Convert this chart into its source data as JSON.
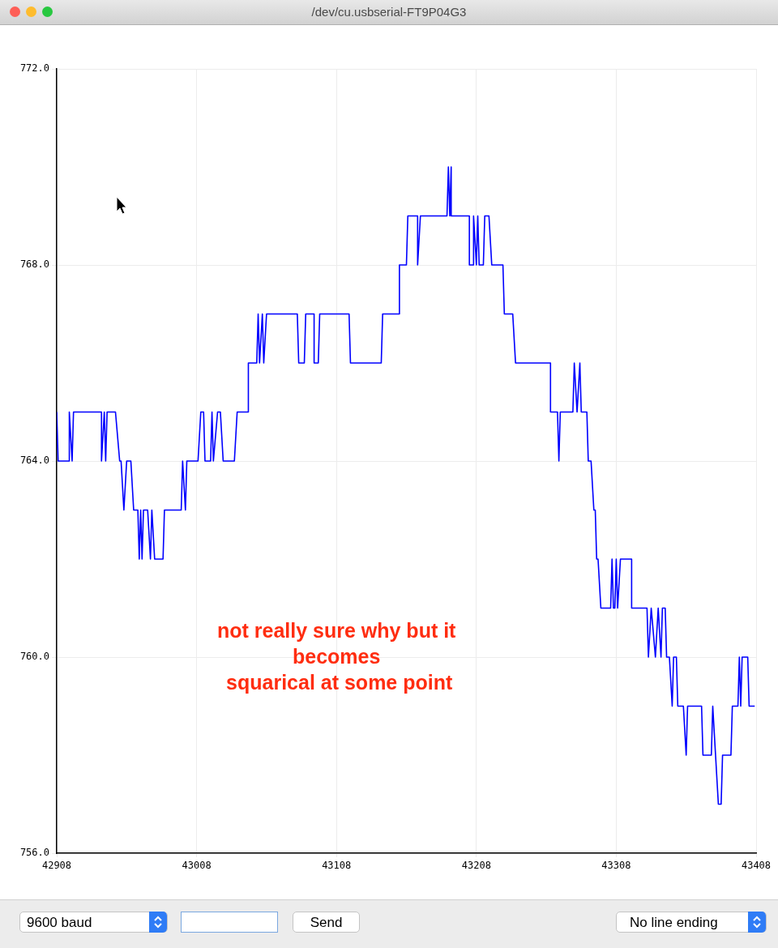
{
  "chart_data": {
    "type": "line",
    "title": "/dev/cu.usbserial-FT9P04G3",
    "xlim": [
      42908,
      43408
    ],
    "xticks": [
      42908,
      43008,
      43108,
      43208,
      43308,
      43408
    ],
    "ylim": [
      756,
      772
    ],
    "yticks": [
      {
        "value": 756,
        "label": "756.0"
      },
      {
        "value": 760,
        "label": "760.0"
      },
      {
        "value": 764,
        "label": "764.0"
      },
      {
        "value": 768,
        "label": "768.0"
      },
      {
        "value": 772,
        "label": "772.0"
      }
    ],
    "grid": true,
    "legend": false,
    "marker": "none",
    "line_style": "solid",
    "annotations": [
      "not really sure why but it\nbecomes\n squarical at some point",
      "9600 baud",
      "Send",
      "No line ending"
    ],
    "series": [
      {
        "color": "#0000ff",
        "x": [
          42908,
          42909,
          42917,
          42917,
          42919,
          42920,
          42940,
          42940,
          42942,
          42943,
          42944,
          42950,
          42953,
          42954,
          42956,
          42958,
          42961,
          42963,
          42966,
          42967,
          42968,
          42969,
          42970,
          42973,
          42975,
          42976,
          42978,
          42984,
          42985,
          42997,
          42998,
          43000,
          43001,
          43009,
          43011,
          43013,
          43014,
          43018,
          43019,
          43020,
          43023,
          43025,
          43027,
          43035,
          43037,
          43045,
          43045,
          43051,
          43052,
          43053,
          43055,
          43056,
          43058,
          43080,
          43081,
          43085,
          43086,
          43092,
          43092,
          43095,
          43096,
          43117,
          43118,
          43140,
          43141,
          43153,
          43153,
          43158,
          43159,
          43166,
          43166,
          43168,
          43187,
          43188,
          43189,
          43190,
          43190,
          43203,
          43203,
          43206,
          43206,
          43208,
          43209,
          43210,
          43213,
          43214,
          43217,
          43219,
          43227,
          43228,
          43234,
          43236,
          43261,
          43261,
          43266,
          43267,
          43268,
          43277,
          43278,
          43280,
          43282,
          43283,
          43287,
          43288,
          43290,
          43292,
          43293,
          43294,
          43295,
          43297,
          43304,
          43305,
          43306,
          43307,
          43308,
          43309,
          43311,
          43319,
          43319,
          43330,
          43331,
          43333,
          43336,
          43338,
          43340,
          43341,
          43343,
          43344,
          43346,
          43348,
          43349,
          43351,
          43352,
          43356,
          43358,
          43359,
          43369,
          43370,
          43376,
          43377,
          43379,
          43381,
          43383,
          43384,
          43390,
          43391,
          43395,
          43396,
          43397,
          43398,
          43402,
          43403,
          43407
        ],
        "values": [
          765,
          764,
          764,
          765,
          764,
          765,
          765,
          764,
          765,
          764,
          765,
          765,
          764,
          764,
          763,
          764,
          764,
          763,
          763,
          762,
          763,
          762,
          763,
          763,
          762,
          763,
          762,
          762,
          763,
          763,
          764,
          763,
          764,
          764,
          765,
          765,
          764,
          764,
          765,
          764,
          765,
          765,
          764,
          764,
          765,
          765,
          766,
          766,
          767,
          766,
          767,
          766,
          767,
          767,
          766,
          766,
          767,
          767,
          766,
          766,
          767,
          767,
          766,
          766,
          767,
          767,
          768,
          768,
          769,
          769,
          768,
          769,
          769,
          770,
          769,
          770,
          769,
          769,
          768,
          768,
          769,
          768,
          769,
          768,
          768,
          769,
          769,
          768,
          768,
          767,
          767,
          766,
          766,
          765,
          765,
          764,
          765,
          765,
          766,
          765,
          766,
          765,
          765,
          764,
          764,
          763,
          763,
          762,
          762,
          761,
          761,
          762,
          761,
          761,
          762,
          761,
          762,
          762,
          761,
          761,
          760,
          761,
          760,
          761,
          760,
          761,
          761,
          760,
          760,
          759,
          760,
          760,
          759,
          759,
          758,
          759,
          759,
          758,
          758,
          759,
          758,
          757,
          757,
          758,
          758,
          759,
          759,
          760,
          759,
          760,
          760,
          759,
          759
        ]
      }
    ]
  }
}
